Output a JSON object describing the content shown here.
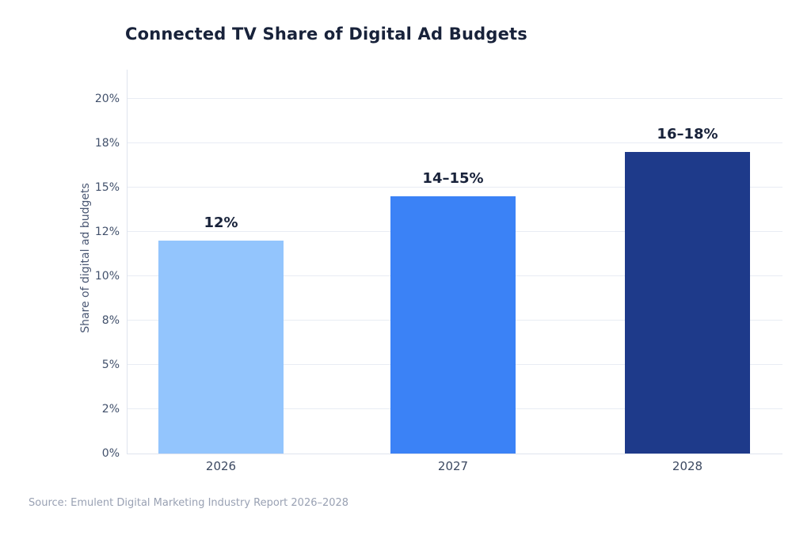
{
  "title": "Connected TV Share of Digital Ad Budgets",
  "source_note": "Source: Emulent Digital Marketing Industry Report 2026–2028",
  "chart_data": {
    "type": "bar",
    "title": "Connected TV Share of Digital Ad Budgets",
    "xlabel": "",
    "ylabel": "Share of digital ad budgets",
    "categories": [
      "2026",
      "2027",
      "2028"
    ],
    "values": [
      12,
      14.5,
      17
    ],
    "value_labels": [
      "12%",
      "14–15%",
      "16–18%"
    ],
    "value_ranges": [
      [
        12,
        12
      ],
      [
        14,
        15
      ],
      [
        16,
        18
      ]
    ],
    "yticks": [
      "0%",
      "2%",
      "5%",
      "8%",
      "10%",
      "12%",
      "15%",
      "18%",
      "20%"
    ],
    "ylim": [
      0,
      20
    ],
    "grid": "horizontal",
    "legend": "none",
    "bar_colors": [
      "#93c5fd",
      "#3b82f6",
      "#1e3a8a"
    ]
  },
  "colors": {
    "background": "#ffffff",
    "title_text": "#18223a",
    "value_label_text": "#18223a",
    "tick_label_text": "#41506b",
    "axis_title_text": "#4a5773",
    "gridline": "#e8ecf4",
    "axis_line": "#dfe4ee",
    "source_text": "#99a1b3"
  }
}
